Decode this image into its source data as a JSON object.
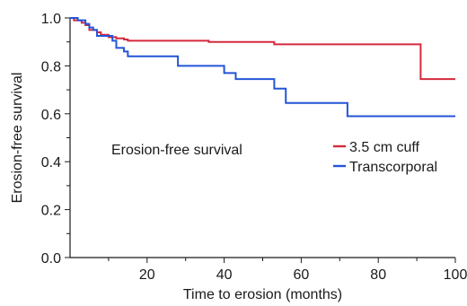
{
  "chart_data": {
    "type": "line",
    "step": true,
    "xlabel": "Time to erosion (months)",
    "ylabel": "Erosion-free survival",
    "annotation": "Erosion-free survival",
    "xlim": [
      0,
      100
    ],
    "ylim": [
      0,
      1.0
    ],
    "xticks": [
      20,
      40,
      60,
      80,
      100
    ],
    "yticks": [
      0.0,
      0.2,
      0.4,
      0.6,
      0.8,
      1.0
    ],
    "ytick_labels": [
      "0.0",
      "0.2",
      "0.4",
      "0.6",
      "0.8",
      "1.0"
    ],
    "grid": false,
    "legend_position": "right",
    "series": [
      {
        "name": "3.5 cm cuff",
        "color": "#d42a3c",
        "points": [
          [
            0,
            1.0
          ],
          [
            1,
            0.99
          ],
          [
            3,
            0.98
          ],
          [
            4,
            0.97
          ],
          [
            5,
            0.95
          ],
          [
            7,
            0.94
          ],
          [
            8,
            0.93
          ],
          [
            10,
            0.92
          ],
          [
            12,
            0.915
          ],
          [
            14,
            0.91
          ],
          [
            15,
            0.905
          ],
          [
            36,
            0.9
          ],
          [
            53,
            0.89
          ],
          [
            91,
            0.745
          ],
          [
            100,
            0.745
          ]
        ]
      },
      {
        "name": "Transcorporal",
        "color": "#2355d8",
        "points": [
          [
            0,
            1.0
          ],
          [
            2,
            0.99
          ],
          [
            4,
            0.975
          ],
          [
            5,
            0.96
          ],
          [
            6,
            0.95
          ],
          [
            7,
            0.925
          ],
          [
            11,
            0.905
          ],
          [
            12,
            0.875
          ],
          [
            14,
            0.86
          ],
          [
            15,
            0.84
          ],
          [
            28,
            0.8
          ],
          [
            40,
            0.77
          ],
          [
            43,
            0.745
          ],
          [
            53,
            0.705
          ],
          [
            56,
            0.645
          ],
          [
            72,
            0.59
          ],
          [
            100,
            0.59
          ]
        ]
      }
    ]
  }
}
